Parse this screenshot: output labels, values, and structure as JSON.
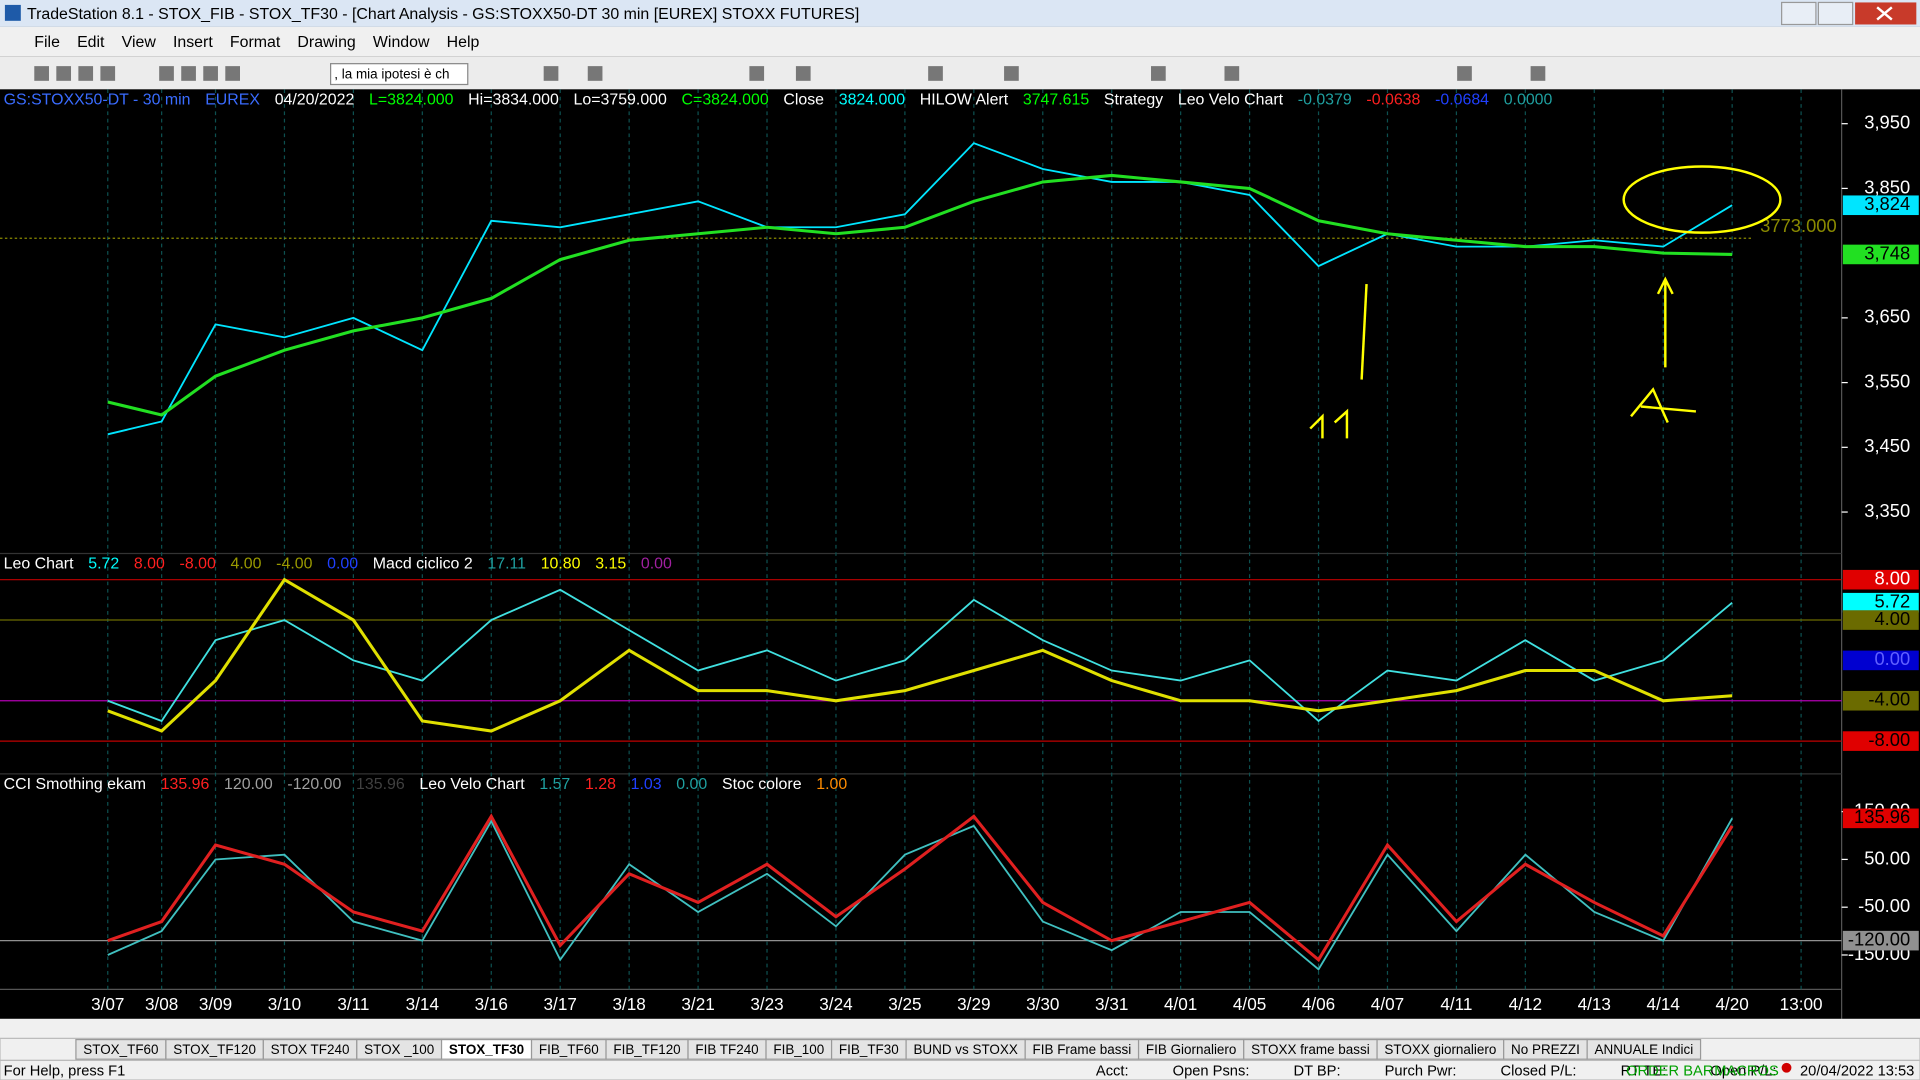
{
  "window": {
    "title": "TradeStation 8.1 - STOX_FIB - STOX_TF30 - [Chart Analysis - GS:STOXX50-DT  30 min  [EUREX] STOXX FUTURES]"
  },
  "menu": [
    "File",
    "Edit",
    "View",
    "Insert",
    "Format",
    "Drawing",
    "Window",
    "Help"
  ],
  "toolbar": {
    "combo": ", la mia ipotesi è ch"
  },
  "chart_data": [
    {
      "type": "line",
      "header": [
        {
          "text": "GS:STOXX50-DT - 30 min",
          "color": "#3a6cff"
        },
        {
          "text": "EUREX",
          "color": "#3a6cff"
        },
        {
          "text": "04/20/2022",
          "color": "#ffffff"
        },
        {
          "text": "L=3824.000",
          "color": "#00ff00"
        },
        {
          "text": "Hi=3834.000",
          "color": "#ffffff"
        },
        {
          "text": "Lo=3759.000",
          "color": "#ffffff"
        },
        {
          "text": "C=3824.000",
          "color": "#00ff00"
        },
        {
          "text": "Close",
          "color": "#ffffff"
        },
        {
          "text": "3824.000",
          "color": "#00ffff"
        },
        {
          "text": "HILOW Alert",
          "color": "#ffffff"
        },
        {
          "text": "3747.615",
          "color": "#00ff00"
        },
        {
          "text": "Strategy",
          "color": "#ffffff"
        },
        {
          "text": "Leo Velo Chart",
          "color": "#ffffff"
        },
        {
          "text": "-0.0379",
          "color": "#1fa0a0"
        },
        {
          "text": "-0.0638",
          "color": "#ff2020"
        },
        {
          "text": "-0.0684",
          "color": "#2040ff"
        },
        {
          "text": "0.0000",
          "color": "#1fa0a0"
        }
      ],
      "categories": [
        "3/07",
        "3/08",
        "3/09",
        "3/10",
        "3/11",
        "3/14",
        "3/16",
        "3/17",
        "3/18",
        "3/21",
        "3/23",
        "3/24",
        "3/25",
        "3/29",
        "3/30",
        "3/31",
        "4/01",
        "4/05",
        "4/06",
        "4/07",
        "4/11",
        "4/12",
        "4/13",
        "4/14",
        "4/20",
        "13:00"
      ],
      "series": [
        {
          "color": "#00e5ff",
          "values": [
            3470,
            3490,
            3640,
            3620,
            3650,
            3600,
            3800,
            3790,
            3810,
            3830,
            3790,
            3790,
            3810,
            3920,
            3880,
            3860,
            3860,
            3840,
            3730,
            3780,
            3760,
            3760,
            3770,
            3760,
            3824,
            null
          ]
        },
        {
          "color": "#22e022",
          "values": [
            3520,
            3500,
            3560,
            3600,
            3630,
            3650,
            3680,
            3740,
            3770,
            3780,
            3790,
            3780,
            3790,
            3830,
            3860,
            3870,
            3860,
            3850,
            3800,
            3780,
            3770,
            3760,
            3760,
            3750,
            3748,
            null
          ]
        }
      ],
      "ylim": [
        3286,
        4003
      ],
      "yticks": [
        {
          "value": 3950,
          "label": "3,950"
        },
        {
          "value": 3850,
          "label": "3,850"
        },
        {
          "value": 3650,
          "label": "3,650"
        },
        {
          "value": 3550,
          "label": "3,550"
        },
        {
          "value": 3450,
          "label": "3,450"
        },
        {
          "value": 3350,
          "label": "3,350"
        }
      ],
      "markers": [
        {
          "value": 3824,
          "label": "3,824",
          "bg": "#00e5ff",
          "fg": "#000000"
        },
        {
          "value": 3748,
          "label": "3,748",
          "bg": "#22e022",
          "fg": "#000000"
        }
      ],
      "ref_line": {
        "value": 3773,
        "label": "3773.000",
        "color": "#8a8a00"
      }
    },
    {
      "type": "line",
      "header": [
        {
          "text": "Leo Chart",
          "color": "#ffffff"
        },
        {
          "text": "5.72",
          "color": "#00ffff"
        },
        {
          "text": "8.00",
          "color": "#ff2020"
        },
        {
          "text": "-8.00",
          "color": "#ff2020"
        },
        {
          "text": "4.00",
          "color": "#9a9a00"
        },
        {
          "text": "-4.00",
          "color": "#9a9a00"
        },
        {
          "text": "0.00",
          "color": "#2040ff"
        },
        {
          "text": "Macd ciclico 2",
          "color": "#ffffff"
        },
        {
          "text": "17.11",
          "color": "#1fa0a0"
        },
        {
          "text": "10.80",
          "color": "#ffff00"
        },
        {
          "text": "3.15",
          "color": "#ffff00"
        },
        {
          "text": "0.00",
          "color": "#a020a0"
        }
      ],
      "series": [
        {
          "color": "#40e0e0",
          "values": [
            -4,
            -6,
            2,
            4,
            0,
            -2,
            4,
            7,
            3,
            -1,
            1,
            -2,
            0,
            6,
            2,
            -1,
            -2,
            0,
            -6,
            -1,
            -2,
            2,
            -2,
            0,
            5.72,
            null
          ]
        },
        {
          "color": "#e0e000",
          "values": [
            -5,
            -7,
            -2,
            8,
            4,
            -6,
            -7,
            -4,
            1,
            -3,
            -3,
            -4,
            -3,
            -1,
            1,
            -2,
            -4,
            -4,
            -5,
            -4,
            -3,
            -1,
            -1,
            -4,
            -3.5,
            null
          ]
        }
      ],
      "ylim": [
        -11.25,
        10.6
      ],
      "markers": [
        {
          "value": 8,
          "label": "8.00",
          "bg": "#e00000",
          "fg": "#ffffff",
          "line": "#c00000"
        },
        {
          "value": 5.72,
          "label": "5.72",
          "bg": "#00ffff",
          "fg": "#000000"
        },
        {
          "value": 4,
          "label": "4.00",
          "bg": "#6b6b00",
          "fg": "#000000",
          "line": "#6b6b00"
        },
        {
          "value": 0,
          "label": "0.00",
          "bg": "#0000d0",
          "fg": "#6060ff"
        },
        {
          "value": -4,
          "label": "-4.00",
          "bg": "#6b6b00",
          "fg": "#000000",
          "line": "#b000b0"
        },
        {
          "value": -8,
          "label": "-8.00",
          "bg": "#e00000",
          "fg": "#000000",
          "line": "#c00000"
        }
      ]
    },
    {
      "type": "line",
      "header": [
        {
          "text": "CCI Smothing ekam",
          "color": "#ffffff"
        },
        {
          "text": "135.96",
          "color": "#ff2020"
        },
        {
          "text": "120.00",
          "color": "#a0a0a0"
        },
        {
          "text": "-120.00",
          "color": "#a0a0a0"
        },
        {
          "text": "135.96",
          "color": "#404040"
        },
        {
          "text": "Leo Velo Chart",
          "color": "#ffffff"
        },
        {
          "text": "1.57",
          "color": "#1fa0a0"
        },
        {
          "text": "1.28",
          "color": "#ff2020"
        },
        {
          "text": "1.03",
          "color": "#2040ff"
        },
        {
          "text": "0.00",
          "color": "#1fa0a0"
        },
        {
          "text": "Stoc colore",
          "color": "#ffffff"
        },
        {
          "text": "1.00",
          "color": "#ff8c00"
        }
      ],
      "series": [
        {
          "color": "#40c0c0",
          "values": [
            -150,
            -100,
            50,
            60,
            -80,
            -120,
            130,
            -160,
            40,
            -60,
            20,
            -90,
            60,
            120,
            -80,
            -140,
            -60,
            -60,
            -180,
            60,
            -100,
            60,
            -60,
            -120,
            135.96,
            null
          ]
        },
        {
          "color": "#e02020",
          "values": [
            -120,
            -80,
            80,
            40,
            -60,
            -100,
            140,
            -130,
            20,
            -40,
            40,
            -70,
            30,
            140,
            -40,
            -120,
            -80,
            -40,
            -160,
            80,
            -80,
            40,
            -40,
            -110,
            120,
            null
          ]
        }
      ],
      "ylim": [
        -222,
        229
      ],
      "yticks": [
        {
          "value": 150,
          "label": "150.00"
        },
        {
          "value": 50,
          "label": "50.00"
        },
        {
          "value": -50,
          "label": "-50.00"
        },
        {
          "value": -150,
          "label": "-150.00"
        }
      ],
      "markers": [
        {
          "value": 135.96,
          "label": "135.96",
          "bg": "#e00000",
          "fg": "#000000"
        },
        {
          "value": -120,
          "label": "-120.00",
          "bg": "#909090",
          "fg": "#000000",
          "line": "#909090"
        }
      ]
    }
  ],
  "tabs": [
    "STOX_TF60",
    "STOX_TF120",
    "STOX TF240",
    "STOX _100",
    "STOX_TF30",
    "FIB_TF60",
    "FIB_TF120",
    "FIB TF240",
    "FIB_100",
    "FIB_TF30",
    "BUND vs STOXX",
    "FIB Frame bassi",
    "FIB Giornaliero",
    "STOXX frame bassi",
    "STOXX giornaliero",
    "No PREZZI",
    "ANNUALE Indici"
  ],
  "active_tab": 4,
  "status": {
    "help": "For Help, press F1",
    "fields": [
      "Acct:",
      "Open Psns:",
      "DT BP:",
      "Purch Pwr:",
      "Closed P/L:",
      "RT TE:",
      "Open P/L:"
    ],
    "order_bar": "ORDER BAR",
    "macros": "MACROS",
    "clock": "20/04/2022 13:53"
  }
}
